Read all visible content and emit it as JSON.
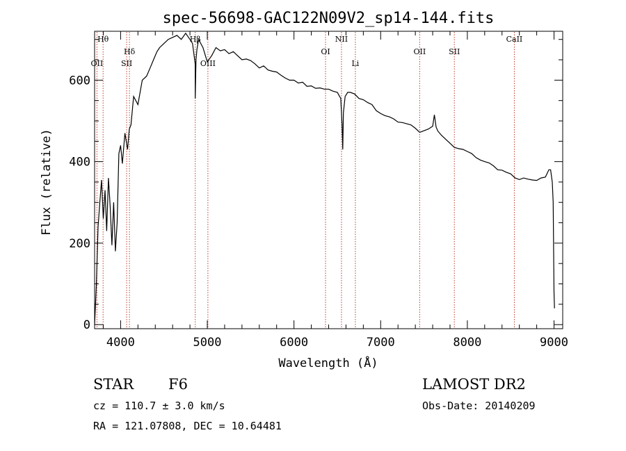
{
  "chart_data": {
    "type": "line",
    "title": "spec-56698-GAC122N09V2_sp14-144.fits",
    "xlabel": "Wavelength (Å)",
    "ylabel": "Flux (relative)",
    "xlim": [
      3700,
      9100
    ],
    "ylim": [
      -10,
      720
    ],
    "xticks": [
      4000,
      5000,
      6000,
      7000,
      8000,
      9000
    ],
    "yticks": [
      0,
      200,
      400,
      600
    ],
    "grid": false,
    "series": [
      {
        "x": [
          3700,
          3720,
          3740,
          3760,
          3780,
          3800,
          3820,
          3840,
          3860,
          3880,
          3900,
          3920,
          3940,
          3960,
          3980,
          4000,
          4020,
          4050,
          4080,
          4100,
          4120,
          4150,
          4200,
          4250,
          4300,
          4340,
          4380,
          4420,
          4450,
          4500,
          4550,
          4600,
          4650,
          4700,
          4750,
          4800,
          4830,
          4860,
          4861,
          4870,
          4880,
          4900,
          4920,
          4950,
          5000,
          5050,
          5100,
          5150,
          5200,
          5250,
          5300,
          5350,
          5400,
          5450,
          5500,
          5550,
          5600,
          5650,
          5700,
          5750,
          5800,
          5850,
          5900,
          5950,
          6000,
          6050,
          6100,
          6150,
          6200,
          6250,
          6300,
          6350,
          6400,
          6450,
          6500,
          6540,
          6555,
          6563,
          6570,
          6590,
          6620,
          6650,
          6700,
          6750,
          6800,
          6850,
          6900,
          6950,
          7000,
          7050,
          7100,
          7150,
          7200,
          7250,
          7300,
          7350,
          7400,
          7450,
          7500,
          7550,
          7600,
          7620,
          7640,
          7660,
          7700,
          7750,
          7800,
          7850,
          7900,
          7950,
          8000,
          8050,
          8100,
          8150,
          8200,
          8250,
          8300,
          8350,
          8400,
          8450,
          8500,
          8550,
          8600,
          8650,
          8700,
          8750,
          8800,
          8850,
          8900,
          8940,
          8960,
          8980,
          8990,
          9000,
          9005
        ],
        "values": [
          0,
          95,
          240,
          300,
          355,
          260,
          330,
          230,
          360,
          290,
          195,
          300,
          180,
          250,
          420,
          440,
          395,
          470,
          430,
          480,
          490,
          560,
          540,
          600,
          610,
          630,
          650,
          670,
          680,
          690,
          700,
          705,
          710,
          700,
          715,
          700,
          690,
          640,
          555,
          650,
          675,
          700,
          692,
          680,
          645,
          660,
          680,
          672,
          675,
          665,
          670,
          660,
          650,
          652,
          648,
          640,
          630,
          635,
          625,
          622,
          620,
          612,
          605,
          600,
          600,
          593,
          595,
          585,
          586,
          580,
          581,
          578,
          578,
          573,
          570,
          555,
          490,
          430,
          520,
          560,
          570,
          570,
          566,
          555,
          552,
          545,
          540,
          525,
          518,
          513,
          510,
          505,
          497,
          496,
          493,
          490,
          482,
          472,
          476,
          480,
          487,
          515,
          485,
          475,
          465,
          455,
          445,
          435,
          432,
          430,
          425,
          420,
          410,
          404,
          400,
          397,
          390,
          380,
          379,
          374,
          370,
          360,
          356,
          360,
          357,
          355,
          354,
          360,
          362,
          380,
          380,
          350,
          300,
          80,
          40
        ]
      }
    ],
    "emission_lines": [
      {
        "label": "OII",
        "x": 3727,
        "row": 3
      },
      {
        "label": "Hθ",
        "x": 3798,
        "row": 1
      },
      {
        "label": "SII",
        "x": 4070,
        "row": 3
      },
      {
        "label": "Hδ",
        "x": 4102,
        "row": 2
      },
      {
        "label": "Hβ",
        "x": 4861,
        "row": 1
      },
      {
        "label": "OIII",
        "x": 5007,
        "row": 3
      },
      {
        "label": "OI",
        "x": 6364,
        "row": 2
      },
      {
        "label": "NII",
        "x": 6548,
        "row": 1
      },
      {
        "label": "Li",
        "x": 6708,
        "row": 3
      },
      {
        "label": "OII",
        "x": 7450,
        "row": 2
      },
      {
        "label": "SII",
        "x": 7850,
        "row": 2
      },
      {
        "label": "CaII",
        "x": 8542,
        "row": 1
      }
    ]
  },
  "info": {
    "class_label": "STAR",
    "subclass": "F6",
    "survey": "LAMOST DR2",
    "cz": "cz = 110.7 ± 3.0 km/s",
    "obs_date": "Obs-Date: 20140209",
    "radec": "RA = 121.07808, DEC =  10.64481"
  }
}
